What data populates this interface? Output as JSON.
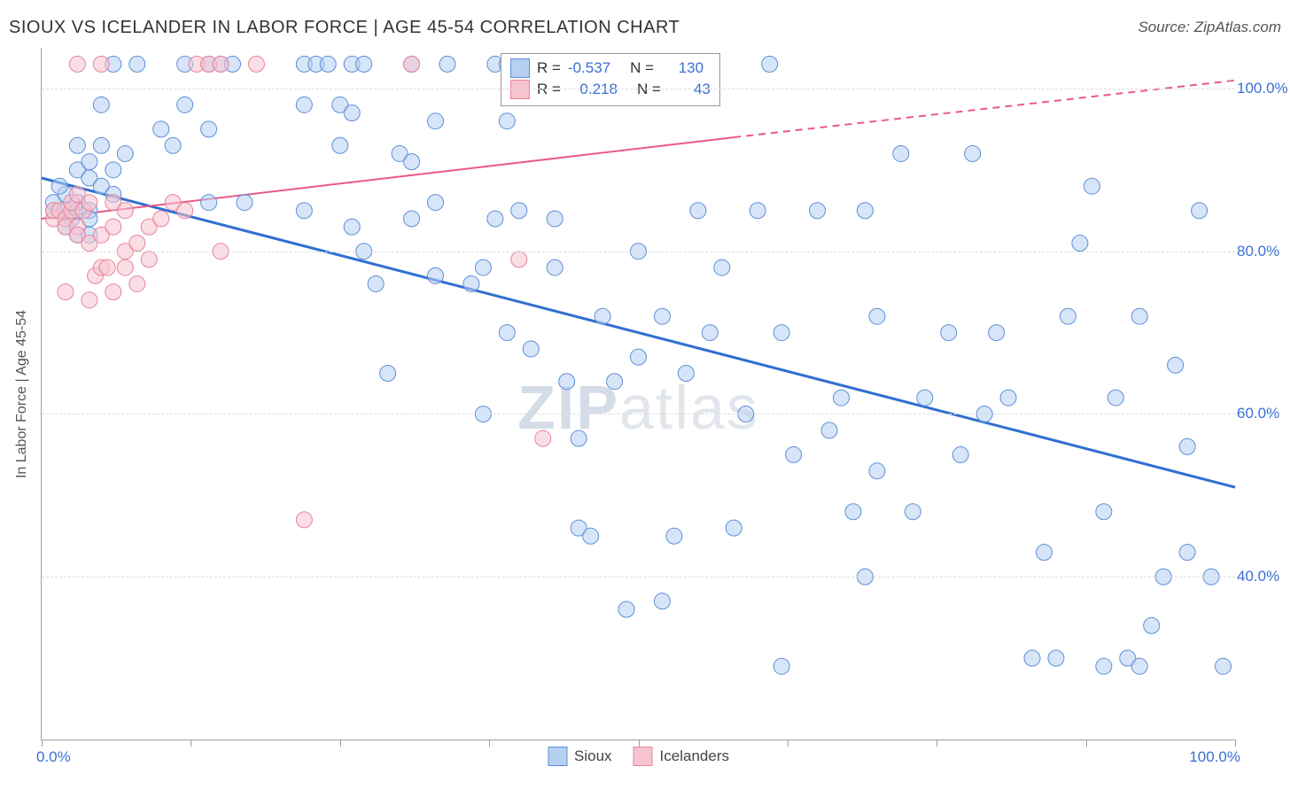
{
  "header": {
    "title": "SIOUX VS ICELANDER IN LABOR FORCE | AGE 45-54 CORRELATION CHART",
    "source": "Source: ZipAtlas.com"
  },
  "chart": {
    "type": "scatter",
    "xlim": [
      0,
      100
    ],
    "ylim": [
      20,
      105
    ],
    "y_ticks": [
      40,
      60,
      80,
      100
    ],
    "y_tick_labels": [
      "40.0%",
      "60.0%",
      "80.0%",
      "100.0%"
    ],
    "x_tick_positions": [
      0,
      12.5,
      25,
      37.5,
      50,
      62.5,
      75,
      87.5,
      100
    ],
    "x_first_label": "0.0%",
    "x_last_label": "100.0%",
    "y_axis_label": "In Labor Force | Age 45-54",
    "background_color": "#ffffff",
    "grid_color": "#dcdcdc",
    "axis_color": "#9aa0a6",
    "marker_radius": 9,
    "marker_opacity": 0.55,
    "series": [
      {
        "name": "Sioux",
        "legend_label": "Sioux",
        "fill": "#b6d0f2",
        "stroke": "#5e8fd6",
        "line_color": "#2f6fd0",
        "line_width": 3,
        "R": "-0.537",
        "N": "130",
        "regression": {
          "x0": 0,
          "y0": 89,
          "x1": 100,
          "y1": 51,
          "dashed": false
        },
        "points": [
          [
            1,
            85
          ],
          [
            1,
            86
          ],
          [
            2,
            85
          ],
          [
            2,
            83
          ],
          [
            3,
            86
          ],
          [
            2.5,
            84
          ],
          [
            3,
            85
          ],
          [
            4,
            85
          ],
          [
            4,
            84
          ],
          [
            3,
            82
          ],
          [
            4,
            82
          ],
          [
            2,
            87
          ],
          [
            1.5,
            88
          ],
          [
            3,
            90
          ],
          [
            4,
            91
          ],
          [
            5,
            93
          ],
          [
            4,
            89
          ],
          [
            5,
            88
          ],
          [
            6,
            90
          ],
          [
            6,
            87
          ],
          [
            7,
            92
          ],
          [
            3,
            93
          ],
          [
            5,
            98
          ],
          [
            6,
            103
          ],
          [
            8,
            103
          ],
          [
            12,
            103
          ],
          [
            14,
            103
          ],
          [
            15,
            103
          ],
          [
            16,
            103
          ],
          [
            22,
            103
          ],
          [
            23,
            103
          ],
          [
            24,
            103
          ],
          [
            26,
            103
          ],
          [
            27,
            103
          ],
          [
            31,
            103
          ],
          [
            34,
            103
          ],
          [
            38,
            103
          ],
          [
            39,
            103
          ],
          [
            40,
            103
          ],
          [
            10,
            95
          ],
          [
            11,
            93
          ],
          [
            12,
            98
          ],
          [
            14,
            95
          ],
          [
            14,
            86
          ],
          [
            17,
            86
          ],
          [
            22,
            98
          ],
          [
            22,
            85
          ],
          [
            25,
            98
          ],
          [
            25,
            93
          ],
          [
            26,
            97
          ],
          [
            26,
            83
          ],
          [
            27,
            80
          ],
          [
            28,
            76
          ],
          [
            29,
            65
          ],
          [
            30,
            92
          ],
          [
            31,
            91
          ],
          [
            31,
            84
          ],
          [
            33,
            96
          ],
          [
            33,
            86
          ],
          [
            33,
            77
          ],
          [
            36,
            76
          ],
          [
            37,
            78
          ],
          [
            37,
            60
          ],
          [
            38,
            84
          ],
          [
            39,
            96
          ],
          [
            39,
            70
          ],
          [
            40,
            85
          ],
          [
            41,
            68
          ],
          [
            43,
            78
          ],
          [
            43,
            84
          ],
          [
            44,
            64
          ],
          [
            45,
            46
          ],
          [
            45,
            57
          ],
          [
            46,
            45
          ],
          [
            47,
            72
          ],
          [
            48,
            64
          ],
          [
            49,
            36
          ],
          [
            50,
            80
          ],
          [
            50,
            67
          ],
          [
            52,
            72
          ],
          [
            52,
            37
          ],
          [
            53,
            45
          ],
          [
            54,
            65
          ],
          [
            55,
            85
          ],
          [
            56,
            70
          ],
          [
            57,
            78
          ],
          [
            58,
            46
          ],
          [
            59,
            60
          ],
          [
            60,
            85
          ],
          [
            61,
            103
          ],
          [
            62,
            70
          ],
          [
            62,
            29
          ],
          [
            63,
            55
          ],
          [
            65,
            85
          ],
          [
            66,
            58
          ],
          [
            67,
            62
          ],
          [
            68,
            48
          ],
          [
            69,
            85
          ],
          [
            69,
            40
          ],
          [
            70,
            72
          ],
          [
            70,
            53
          ],
          [
            72,
            92
          ],
          [
            73,
            48
          ],
          [
            74,
            62
          ],
          [
            76,
            70
          ],
          [
            77,
            55
          ],
          [
            78,
            92
          ],
          [
            79,
            60
          ],
          [
            80,
            70
          ],
          [
            81,
            62
          ],
          [
            83,
            30
          ],
          [
            84,
            43
          ],
          [
            85,
            30
          ],
          [
            86,
            72
          ],
          [
            87,
            81
          ],
          [
            88,
            88
          ],
          [
            89,
            48
          ],
          [
            89,
            29
          ],
          [
            90,
            62
          ],
          [
            91,
            30
          ],
          [
            92,
            29
          ],
          [
            92,
            72
          ],
          [
            93,
            34
          ],
          [
            94,
            40
          ],
          [
            95,
            66
          ],
          [
            96,
            56
          ],
          [
            96,
            43
          ],
          [
            97,
            85
          ],
          [
            98,
            40
          ],
          [
            99,
            29
          ]
        ]
      },
      {
        "name": "Icelanders",
        "legend_label": "Icelanders",
        "fill": "#f7c3cf",
        "stroke": "#e7849b",
        "line_color": "#e85a8a",
        "line_width": 2,
        "R": "0.218",
        "N": "43",
        "regression": {
          "x0": 0,
          "y0": 84,
          "x1": 58,
          "y1": 94,
          "x2": 100,
          "y2": 101,
          "dashed": true,
          "dash_from_x": 58
        },
        "points": [
          [
            1,
            84
          ],
          [
            1,
            85
          ],
          [
            1.5,
            85
          ],
          [
            2,
            84
          ],
          [
            2,
            83
          ],
          [
            2.5,
            85
          ],
          [
            2.5,
            86
          ],
          [
            3,
            83
          ],
          [
            3,
            82
          ],
          [
            3,
            87
          ],
          [
            3.5,
            85
          ],
          [
            4,
            86
          ],
          [
            4,
            81
          ],
          [
            4.5,
            77
          ],
          [
            5,
            78
          ],
          [
            5,
            82
          ],
          [
            5.5,
            78
          ],
          [
            6,
            75
          ],
          [
            6,
            83
          ],
          [
            6,
            86
          ],
          [
            7,
            78
          ],
          [
            7,
            80
          ],
          [
            7,
            85
          ],
          [
            8,
            81
          ],
          [
            8,
            76
          ],
          [
            9,
            79
          ],
          [
            9,
            83
          ],
          [
            3,
            103
          ],
          [
            10,
            84
          ],
          [
            11,
            86
          ],
          [
            12,
            85
          ],
          [
            13,
            103
          ],
          [
            14,
            103
          ],
          [
            15,
            103
          ],
          [
            15,
            80
          ],
          [
            2,
            75
          ],
          [
            5,
            103
          ],
          [
            4,
            74
          ],
          [
            18,
            103
          ],
          [
            22,
            47
          ],
          [
            40,
            79
          ],
          [
            42,
            57
          ],
          [
            31,
            103
          ]
        ]
      }
    ],
    "watermark": {
      "zip": "ZIP",
      "atlas": "atlas"
    }
  }
}
